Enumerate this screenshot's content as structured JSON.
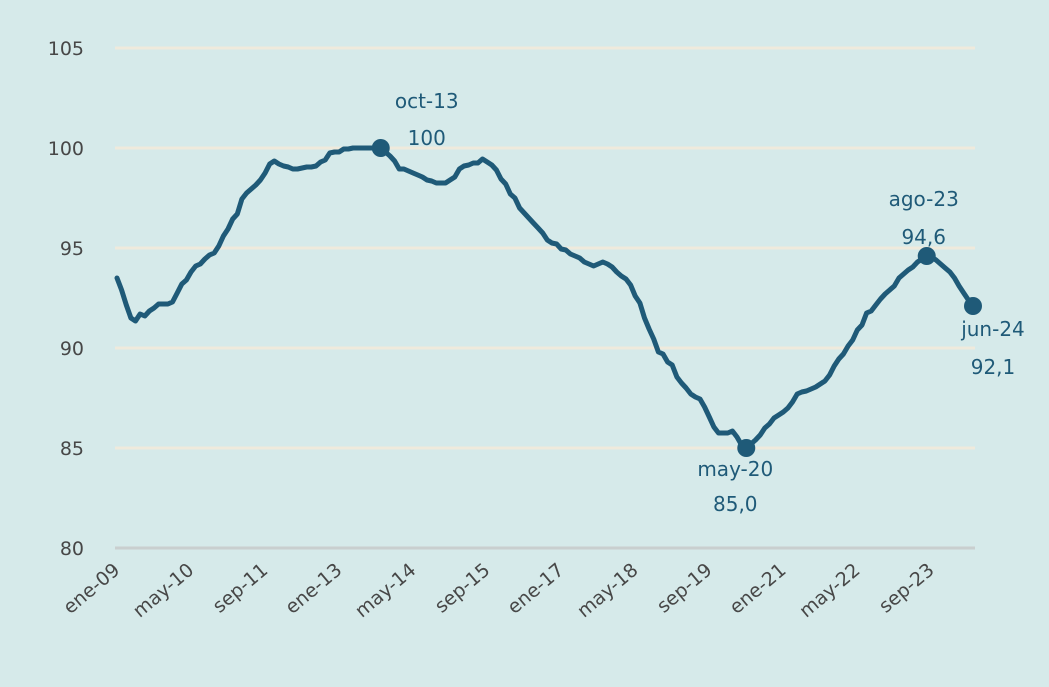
{
  "chart_data": {
    "type": "line",
    "title": "",
    "xlabel": "",
    "ylabel": "",
    "ylim": [
      80,
      105
    ],
    "yticks": [
      80,
      85,
      90,
      95,
      100,
      105
    ],
    "xticks": [
      "ene-09",
      "may-10",
      "sep-11",
      "ene-13",
      "may-14",
      "sep-15",
      "ene-17",
      "may-18",
      "sep-19",
      "ene-21",
      "may-22",
      "sep-23"
    ],
    "x_range": [
      "ene-09",
      "jun-24"
    ],
    "frequency": "monthly",
    "grid": true,
    "legend": "none",
    "colors": {
      "background": "#d6eaea",
      "grid": "#efeadc",
      "line": "#1f5a78",
      "text": "#474747"
    },
    "series": [
      {
        "values": [
          93.5,
          92.9,
          92.15,
          91.5,
          91.35,
          91.7,
          91.6,
          91.85,
          92.0,
          92.2,
          92.2,
          92.2,
          92.3,
          92.75,
          93.2,
          93.4,
          93.8,
          94.1,
          94.2,
          94.45,
          94.65,
          94.75,
          95.1,
          95.6,
          95.95,
          96.45,
          96.7,
          97.45,
          97.75,
          97.95,
          98.15,
          98.4,
          98.75,
          99.2,
          99.35,
          99.2,
          99.1,
          99.05,
          98.95,
          98.95,
          99.0,
          99.05,
          99.05,
          99.1,
          99.3,
          99.4,
          99.75,
          99.8,
          99.8,
          99.95,
          99.95,
          100,
          100,
          100,
          100,
          100,
          100,
          100,
          99.8,
          99.6,
          99.35,
          98.95,
          98.95,
          98.85,
          98.75,
          98.65,
          98.55,
          98.4,
          98.35,
          98.25,
          98.25,
          98.25,
          98.4,
          98.55,
          98.95,
          99.1,
          99.15,
          99.25,
          99.25,
          99.45,
          99.3,
          99.15,
          98.9,
          98.45,
          98.2,
          97.7,
          97.5,
          97.0,
          96.75,
          96.5,
          96.25,
          96.0,
          95.75,
          95.4,
          95.25,
          95.2,
          94.95,
          94.9,
          94.7,
          94.6,
          94.5,
          94.3,
          94.2,
          94.1,
          94.2,
          94.3,
          94.2,
          94.05,
          93.8,
          93.6,
          93.45,
          93.15,
          92.6,
          92.25,
          91.5,
          90.95,
          90.45,
          89.8,
          89.7,
          89.3,
          89.15,
          88.55,
          88.25,
          88.0,
          87.7,
          87.55,
          87.45,
          87.05,
          86.55,
          86.05,
          85.75,
          85.75,
          85.75,
          85.85,
          85.55,
          85.15,
          85.0,
          85.2,
          85.4,
          85.65,
          86.0,
          86.2,
          86.5,
          86.65,
          86.8,
          87.0,
          87.3,
          87.7,
          87.8,
          87.85,
          87.95,
          88.05,
          88.2,
          88.35,
          88.65,
          89.1,
          89.45,
          89.7,
          90.1,
          90.4,
          90.9,
          91.15,
          91.75,
          91.85,
          92.15,
          92.45,
          92.7,
          92.9,
          93.1,
          93.5,
          93.7,
          93.9,
          94.05,
          94.3,
          94.45,
          94.6,
          94.55,
          94.4,
          94.2,
          94.0,
          93.8,
          93.5,
          93.1,
          92.75,
          92.4,
          92.1
        ]
      }
    ],
    "annotations": [
      {
        "date": "oct-13",
        "value": 100,
        "value_label": "100"
      },
      {
        "date": "may-20",
        "value": 85.0,
        "value_label": "85,0"
      },
      {
        "date": "ago-23",
        "value": 94.6,
        "value_label": "94,6"
      },
      {
        "date": "jun-24",
        "value": 92.1,
        "value_label": "92,1"
      }
    ]
  }
}
